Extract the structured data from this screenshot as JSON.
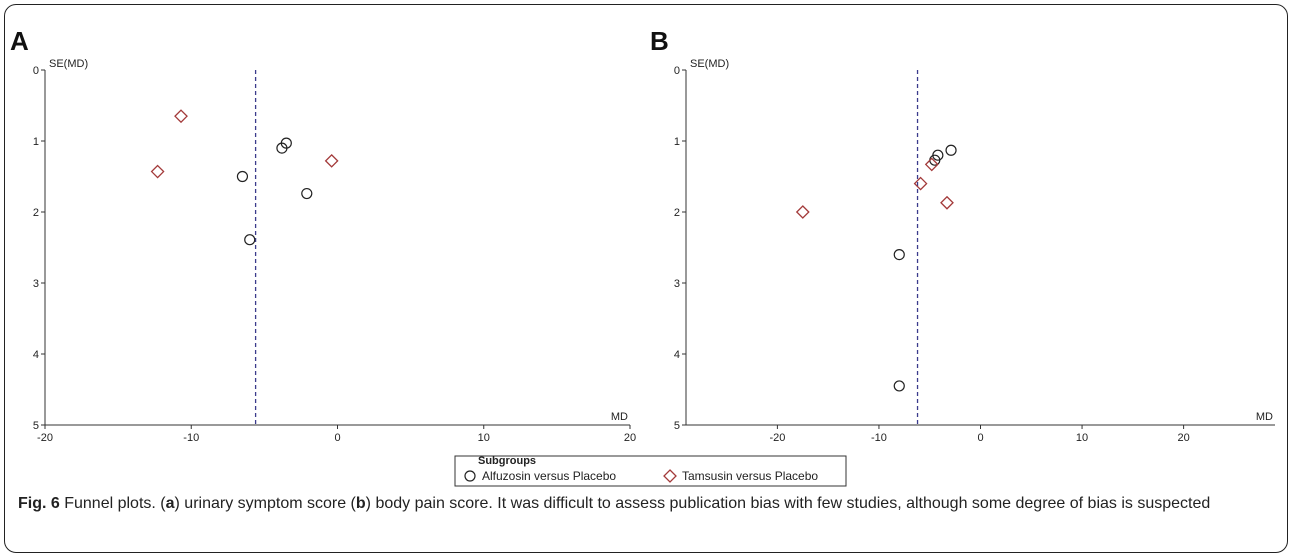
{
  "figure": {
    "caption": {
      "label": "Fig. 6",
      "segments": [
        {
          "text": " Funnel plots. (",
          "bold": false
        },
        {
          "text": "a",
          "bold": true
        },
        {
          "text": ") urinary symptom score (",
          "bold": false
        },
        {
          "text": "b",
          "bold": true
        },
        {
          "text": ") body pain score. It was difficult to assess publication bias with few studies, although some degree of bias is suspected",
          "bold": false
        }
      ]
    },
    "legend": {
      "title": "Subgroups",
      "items": [
        {
          "label": "Alfuzosin versus Placebo",
          "marker": "circle",
          "color": "#222222"
        },
        {
          "label": "Tamsusin versus Placebo",
          "marker": "diamond",
          "color": "#a33a3a"
        }
      ]
    }
  },
  "chart_data": [
    {
      "type": "scatter",
      "panel_label": "A",
      "xlabel": "MD",
      "ylabel": "SE(MD)",
      "xlim": [
        -20,
        20
      ],
      "ylim": [
        0,
        5
      ],
      "y_inverted": true,
      "xticks": [
        -20,
        -10,
        0,
        10,
        20
      ],
      "yticks": [
        0,
        1,
        2,
        3,
        4,
        5
      ],
      "pooled_estimate": -5.6,
      "series": [
        {
          "name": "Alfuzosin versus Placebo",
          "marker": "circle",
          "color": "#222222",
          "points": [
            [
              -3.5,
              1.03
            ],
            [
              -3.8,
              1.1
            ],
            [
              -6.5,
              1.5
            ],
            [
              -2.1,
              1.74
            ],
            [
              -6.0,
              2.39
            ]
          ]
        },
        {
          "name": "Tamsusin versus Placebo",
          "marker": "diamond",
          "color": "#a33a3a",
          "points": [
            [
              -10.7,
              0.65
            ],
            [
              -0.4,
              1.28
            ],
            [
              -12.3,
              1.43
            ]
          ]
        }
      ]
    },
    {
      "type": "scatter",
      "panel_label": "B",
      "xlabel": "MD",
      "ylabel": "SE(MD)",
      "xlim": [
        -29,
        29
      ],
      "ylim": [
        0,
        5
      ],
      "y_inverted": true,
      "xticks": [
        -20,
        -10,
        0,
        10,
        20
      ],
      "yticks": [
        0,
        1,
        2,
        3,
        4,
        5
      ],
      "pooled_estimate": -6.2,
      "series": [
        {
          "name": "Alfuzosin versus Placebo",
          "marker": "circle",
          "color": "#222222",
          "points": [
            [
              -2.9,
              1.13
            ],
            [
              -4.2,
              1.2
            ],
            [
              -4.5,
              1.27
            ],
            [
              -8.0,
              2.6
            ],
            [
              -8.0,
              4.45
            ]
          ]
        },
        {
          "name": "Tamsusin versus Placebo",
          "marker": "diamond",
          "color": "#a33a3a",
          "points": [
            [
              -4.8,
              1.33
            ],
            [
              -5.9,
              1.6
            ],
            [
              -3.3,
              1.87
            ],
            [
              -17.5,
              2.0
            ]
          ]
        }
      ]
    }
  ]
}
